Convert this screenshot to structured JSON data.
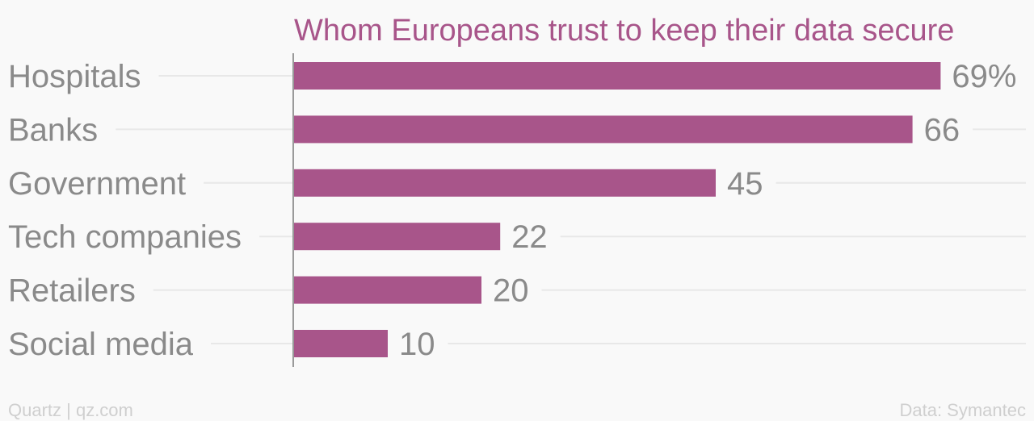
{
  "title": "Whom Europeans trust to keep their data secure",
  "footer": {
    "left": "Quartz | qz.com",
    "right": "Data: Symantec"
  },
  "colors": {
    "bar": "#a8558a",
    "title": "#a8558a",
    "label": "#8a8a8a",
    "gridline": "#e8e8e8",
    "axis": "#9a9a9a",
    "footer": "#cfcfcf",
    "background": "#f9f9f9"
  },
  "chart_data": {
    "type": "bar",
    "orientation": "horizontal",
    "title": "Whom Europeans trust to keep their data secure",
    "categories": [
      "Hospitals",
      "Banks",
      "Government",
      "Tech companies",
      "Retailers",
      "Social media"
    ],
    "values": [
      69,
      66,
      45,
      22,
      20,
      10
    ],
    "value_labels": [
      "69%",
      "66",
      "45",
      "22",
      "20",
      "10"
    ],
    "unit": "%",
    "xlim": [
      0,
      75
    ],
    "grid": true,
    "legend": "none"
  }
}
